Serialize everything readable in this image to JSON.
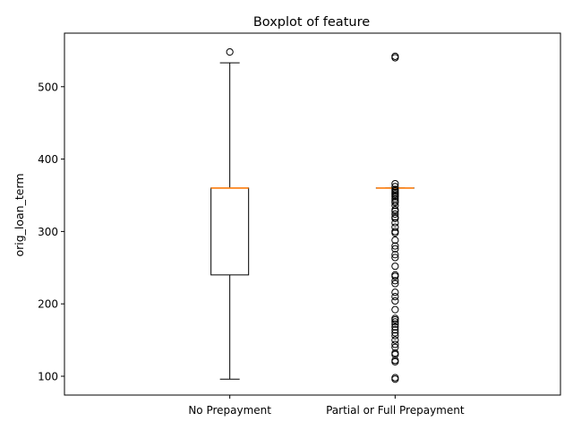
{
  "chart_data": {
    "type": "boxplot",
    "title": "Boxplot of feature",
    "xlabel": "",
    "ylabel": "orig_loan_term",
    "ylim": [
      74,
      574
    ],
    "yticks": [
      100,
      200,
      300,
      400,
      500
    ],
    "ytick_labels": [
      "100",
      "200",
      "300",
      "400",
      "500"
    ],
    "grid": false,
    "categories": [
      "No Prepayment",
      "Partial or Full Prepayment"
    ],
    "boxes": [
      {
        "category": "No Prepayment",
        "whisker_low": 96,
        "q1": 240,
        "median": 360,
        "q3": 360,
        "whisker_high": 533,
        "outliers": [
          548
        ]
      },
      {
        "category": "Partial or Full Prepayment",
        "whisker_low": 360,
        "q1": 360,
        "median": 360,
        "q3": 360,
        "whisker_high": 360,
        "outliers": [
          96,
          98,
          120,
          122,
          130,
          132,
          140,
          144,
          150,
          156,
          160,
          164,
          168,
          172,
          175,
          178,
          180,
          192,
          204,
          210,
          216,
          228,
          232,
          238,
          240,
          252,
          264,
          268,
          276,
          280,
          288,
          298,
          300,
          306,
          312,
          318,
          320,
          324,
          328,
          330,
          336,
          340,
          342,
          345,
          348,
          350,
          352,
          354,
          356,
          358,
          362,
          366,
          540,
          542
        ]
      }
    ],
    "colors": {
      "box": "#000000",
      "median": "#ff7f0e",
      "outlier": "#000000"
    }
  }
}
